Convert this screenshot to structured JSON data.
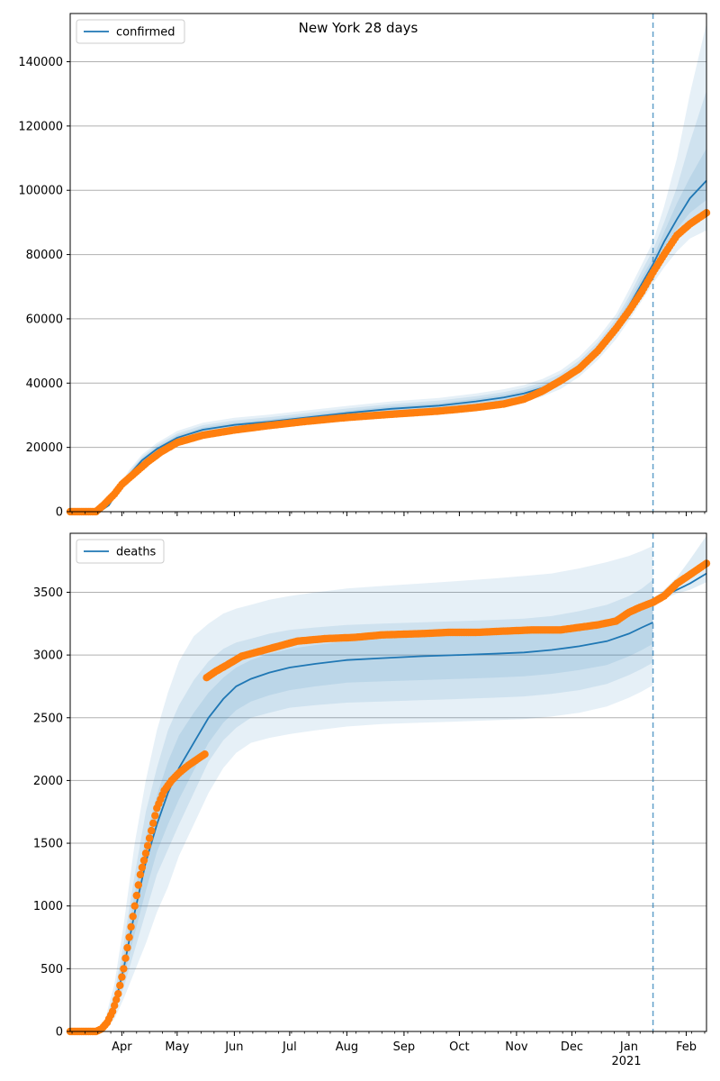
{
  "figure_title": "New York 28 days",
  "colors": {
    "model": "#1f77b4",
    "observed": "#ff7f0e",
    "band": "#1f77b4",
    "grid": "#b0b0b0",
    "axis": "#000000"
  },
  "x_ticks": [
    {
      "label": "Apr",
      "date": "2020-04-01"
    },
    {
      "label": "May",
      "date": "2020-05-01"
    },
    {
      "label": "Jun",
      "date": "2020-06-01"
    },
    {
      "label": "Jul",
      "date": "2020-07-01"
    },
    {
      "label": "Aug",
      "date": "2020-08-01"
    },
    {
      "label": "Sep",
      "date": "2020-09-01"
    },
    {
      "label": "Oct",
      "date": "2020-10-01"
    },
    {
      "label": "Nov",
      "date": "2020-11-01"
    },
    {
      "label": "Dec",
      "date": "2020-12-01"
    },
    {
      "label": "Jan",
      "date": "2021-01-01"
    },
    {
      "label": "Feb",
      "date": "2021-02-01"
    }
  ],
  "year_label": "2021",
  "chart_data": [
    {
      "type": "line",
      "legend": "confirmed",
      "legend_position": "top-left",
      "grid": "y",
      "xlim": [
        "2020-03-04",
        "2021-02-12"
      ],
      "ylim": [
        0,
        155000
      ],
      "yticks": [
        0,
        20000,
        40000,
        60000,
        80000,
        100000,
        120000,
        140000
      ],
      "forecast_start": "2021-01-14",
      "model": {
        "x": [
          "2020-03-04",
          "2020-03-14",
          "2020-03-20",
          "2020-03-25",
          "2020-03-30",
          "2020-04-05",
          "2020-04-12",
          "2020-04-20",
          "2020-05-01",
          "2020-05-15",
          "2020-06-01",
          "2020-06-20",
          "2020-07-10",
          "2020-08-01",
          "2020-08-25",
          "2020-09-20",
          "2020-10-10",
          "2020-10-25",
          "2020-11-05",
          "2020-11-15",
          "2020-11-25",
          "2020-12-05",
          "2020-12-15",
          "2020-12-25",
          "2021-01-01",
          "2021-01-08",
          "2021-01-14",
          "2021-01-20",
          "2021-01-27",
          "2021-02-03",
          "2021-02-12"
        ],
        "y": [
          0,
          0,
          0,
          2000,
          6500,
          11500,
          16000,
          19500,
          23000,
          25500,
          27000,
          28000,
          29300,
          30700,
          32000,
          33000,
          34300,
          35500,
          36800,
          38500,
          41000,
          45000,
          50500,
          57500,
          64000,
          71000,
          77000,
          84000,
          91000,
          97500,
          103000
        ]
      },
      "bands": [
        {
          "lo": [
            0,
            0,
            0,
            1600,
            5500,
            10000,
            14300,
            17600,
            20900,
            23300,
            24800,
            25800,
            27100,
            28400,
            29600,
            30600,
            31800,
            33000,
            34200,
            35800,
            38200,
            42000,
            47200,
            53700,
            59500,
            65700,
            71000,
            76000,
            81000,
            85000,
            87500
          ],
          "hi": [
            0,
            0,
            0,
            2500,
            7600,
            13000,
            17800,
            21400,
            25100,
            27700,
            29200,
            30200,
            31500,
            32900,
            34300,
            35400,
            36800,
            38100,
            39400,
            41300,
            44000,
            48200,
            54000,
            61500,
            69000,
            77000,
            84000,
            95000,
            110000,
            130000,
            152000
          ]
        },
        {
          "lo": [
            0,
            0,
            0,
            1750,
            5900,
            10600,
            15000,
            18400,
            21800,
            24200,
            25700,
            26700,
            28000,
            29300,
            30600,
            31600,
            32800,
            34000,
            35300,
            36900,
            39400,
            43200,
            48500,
            55200,
            61300,
            67700,
            73200,
            79000,
            85000,
            89500,
            93000
          ],
          "hi": [
            0,
            0,
            0,
            2350,
            7200,
            12500,
            17100,
            20700,
            24300,
            26900,
            28400,
            29400,
            30700,
            32100,
            33500,
            34600,
            35900,
            37200,
            38500,
            40300,
            42900,
            47000,
            52700,
            60000,
            67000,
            75000,
            81500,
            90000,
            101000,
            115000,
            131000
          ]
        },
        {
          "lo": [
            0,
            0,
            0,
            1850,
            6100,
            11000,
            15400,
            18900,
            22300,
            24800,
            26300,
            27300,
            28600,
            30000,
            31200,
            32200,
            33500,
            34600,
            35900,
            37600,
            40100,
            44000,
            49400,
            56200,
            62500,
            69100,
            75000,
            81500,
            88000,
            93000,
            97000
          ],
          "hi": [
            0,
            0,
            0,
            2200,
            6900,
            12000,
            16600,
            20100,
            23700,
            26200,
            27700,
            28700,
            30000,
            31400,
            32800,
            33800,
            35100,
            36400,
            37700,
            39400,
            41900,
            46000,
            51600,
            58800,
            65500,
            73000,
            79000,
            87000,
            96000,
            104000,
            113000
          ]
        }
      ],
      "observed": {
        "x": [
          "2020-03-04",
          "2020-03-18",
          "2020-03-22",
          "2020-03-28",
          "2020-04-01",
          "2020-04-08",
          "2020-04-15",
          "2020-04-22",
          "2020-05-01",
          "2020-05-15",
          "2020-06-01",
          "2020-06-20",
          "2020-07-10",
          "2020-08-01",
          "2020-08-25",
          "2020-09-20",
          "2020-10-10",
          "2020-10-25",
          "2020-11-05",
          "2020-11-15",
          "2020-11-25",
          "2020-12-05",
          "2020-12-15",
          "2020-12-25",
          "2021-01-01",
          "2021-01-08",
          "2021-01-14",
          "2021-01-20",
          "2021-01-27",
          "2021-02-03",
          "2021-02-12"
        ],
        "y": [
          0,
          0,
          2000,
          5500,
          8500,
          12000,
          15500,
          18500,
          21500,
          23800,
          25400,
          26800,
          28100,
          29300,
          30300,
          31300,
          32400,
          33500,
          35000,
          37500,
          40800,
          44500,
          50000,
          57000,
          62500,
          68500,
          74500,
          80000,
          86000,
          89500,
          93000
        ]
      }
    },
    {
      "type": "line",
      "legend": "deaths",
      "legend_position": "top-left",
      "grid": "y",
      "xlim": [
        "2020-03-04",
        "2021-02-12"
      ],
      "ylim": [
        0,
        3970
      ],
      "yticks": [
        0,
        500,
        1000,
        1500,
        2000,
        2500,
        3000,
        3500
      ],
      "forecast_start": "2021-01-14",
      "model": {
        "x": [
          "2020-03-04",
          "2020-03-18",
          "2020-03-23",
          "2020-03-28",
          "2020-04-02",
          "2020-04-08",
          "2020-04-14",
          "2020-04-20",
          "2020-04-26",
          "2020-05-02",
          "2020-05-10",
          "2020-05-18",
          "2020-05-26",
          "2020-06-02",
          "2020-06-10",
          "2020-06-20",
          "2020-07-01",
          "2020-07-15",
          "2020-08-01",
          "2020-08-20",
          "2020-09-10",
          "2020-10-01",
          "2020-10-20",
          "2020-11-05",
          "2020-11-20",
          "2020-12-05",
          "2020-12-20",
          "2021-01-01",
          "2021-01-08",
          "2021-01-14"
        ],
        "y": [
          0,
          0,
          50,
          200,
          500,
          950,
          1350,
          1650,
          1900,
          2100,
          2300,
          2500,
          2650,
          2750,
          2810,
          2860,
          2900,
          2930,
          2960,
          2975,
          2990,
          3000,
          3010,
          3020,
          3040,
          3070,
          3110,
          3170,
          3220,
          3260
        ]
      },
      "model_forecast": {
        "x": [
          "2021-01-14",
          "2021-01-20",
          "2021-01-27",
          "2021-02-03",
          "2021-02-12"
        ],
        "y": [
          3430,
          3470,
          3520,
          3570,
          3650
        ]
      },
      "bands": [
        {
          "lo": [
            0,
            0,
            20,
            100,
            260,
            480,
            700,
            950,
            1150,
            1400,
            1650,
            1900,
            2100,
            2220,
            2300,
            2340,
            2370,
            2400,
            2430,
            2450,
            2460,
            2470,
            2480,
            2490,
            2510,
            2540,
            2590,
            2660,
            2710,
            2760
          ],
          "hi": [
            0,
            0,
            100,
            380,
            850,
            1500,
            2000,
            2400,
            2700,
            2950,
            3150,
            3250,
            3330,
            3370,
            3400,
            3440,
            3470,
            3500,
            3530,
            3550,
            3570,
            3590,
            3610,
            3630,
            3650,
            3690,
            3740,
            3790,
            3830,
            3870
          ]
        },
        {
          "lo": [
            0,
            0,
            30,
            140,
            350,
            650,
            950,
            1250,
            1450,
            1650,
            1900,
            2150,
            2320,
            2420,
            2500,
            2540,
            2580,
            2600,
            2620,
            2630,
            2640,
            2650,
            2660,
            2670,
            2690,
            2720,
            2770,
            2840,
            2890,
            2940
          ],
          "hi": [
            0,
            0,
            80,
            300,
            700,
            1250,
            1750,
            2100,
            2400,
            2600,
            2800,
            2950,
            3050,
            3100,
            3130,
            3170,
            3200,
            3220,
            3240,
            3250,
            3260,
            3270,
            3280,
            3290,
            3310,
            3350,
            3400,
            3470,
            3530,
            3600
          ]
        },
        {
          "lo": [
            0,
            0,
            40,
            170,
            420,
            780,
            1120,
            1430,
            1650,
            1850,
            2080,
            2300,
            2460,
            2560,
            2630,
            2680,
            2720,
            2750,
            2780,
            2790,
            2800,
            2810,
            2820,
            2830,
            2850,
            2880,
            2920,
            2990,
            3040,
            3090
          ],
          "hi": [
            0,
            0,
            65,
            250,
            600,
            1100,
            1550,
            1880,
            2150,
            2360,
            2540,
            2700,
            2820,
            2900,
            2960,
            3010,
            3050,
            3080,
            3110,
            3130,
            3150,
            3160,
            3170,
            3180,
            3200,
            3230,
            3280,
            3350,
            3400,
            3450
          ]
        }
      ],
      "forecast_bands": {
        "x": [
          "2021-01-14",
          "2021-01-20",
          "2021-01-27",
          "2021-02-03",
          "2021-02-12"
        ],
        "lo": [
          3400,
          3450,
          3490,
          3520,
          3580
        ],
        "hi": [
          3450,
          3520,
          3620,
          3760,
          3950
        ]
      },
      "observed": {
        "x": [
          "2020-03-04",
          "2020-03-18",
          "2020-03-21",
          "2020-03-24",
          "2020-03-27",
          "2020-03-30",
          "2020-04-02",
          "2020-04-05",
          "2020-04-08",
          "2020-04-11",
          "2020-04-14",
          "2020-04-17",
          "2020-04-20",
          "2020-04-24",
          "2020-04-28",
          "2020-05-02",
          "2020-05-07",
          "2020-05-12",
          "2020-05-16",
          "2020-05-17",
          "2020-05-22",
          "2020-05-28",
          "2020-06-05",
          "2020-06-15",
          "2020-06-25",
          "2020-07-05",
          "2020-07-20",
          "2020-08-05",
          "2020-08-20",
          "2020-09-10",
          "2020-09-25",
          "2020-10-10",
          "2020-10-25",
          "2020-11-10",
          "2020-11-25",
          "2020-12-05",
          "2020-12-15",
          "2020-12-25",
          "2021-01-01",
          "2021-01-07",
          "2021-01-14",
          "2021-01-20",
          "2021-01-27",
          "2021-02-03",
          "2021-02-12"
        ],
        "y": [
          0,
          0,
          20,
          70,
          160,
          300,
          500,
          750,
          1000,
          1250,
          1420,
          1600,
          1780,
          1920,
          2000,
          2060,
          2120,
          2170,
          2210,
          2820,
          2870,
          2920,
          2990,
          3030,
          3070,
          3110,
          3130,
          3140,
          3160,
          3170,
          3180,
          3180,
          3190,
          3200,
          3200,
          3220,
          3240,
          3270,
          3340,
          3380,
          3420,
          3470,
          3570,
          3640,
          3730
        ]
      }
    }
  ]
}
